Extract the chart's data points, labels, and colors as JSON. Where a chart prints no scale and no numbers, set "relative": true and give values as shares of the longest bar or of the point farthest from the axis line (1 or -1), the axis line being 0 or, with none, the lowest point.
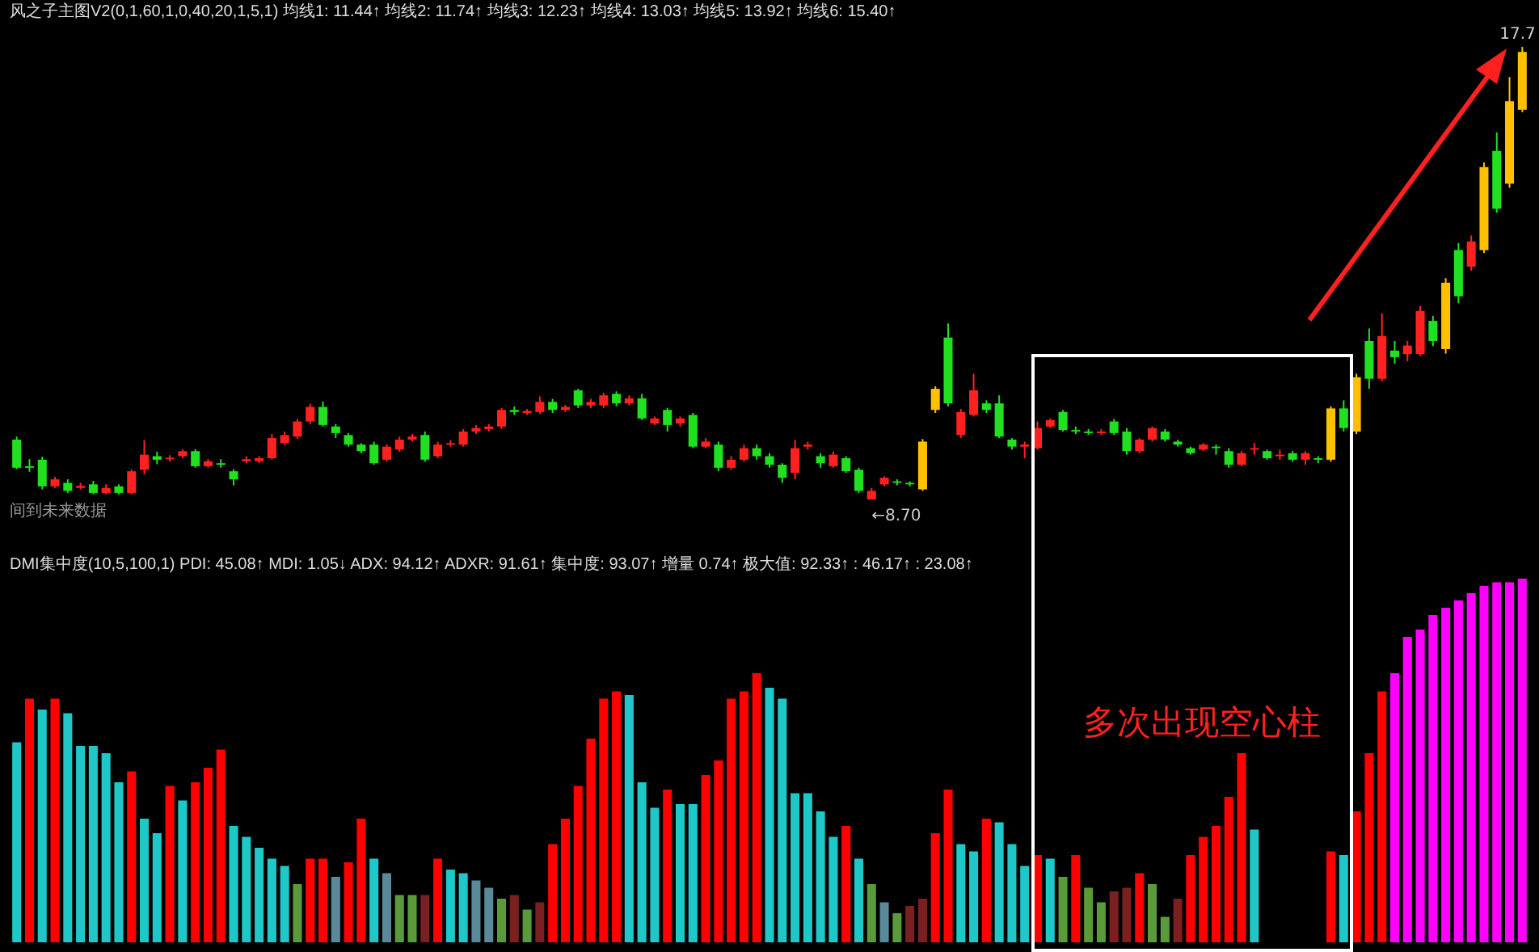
{
  "chart_data": [
    {
      "type": "candlestick",
      "title": "风之子主图V2(0,1,60,1,0,40,20,1,5,1)  均线1: 11.44↑  均线2: 11.74↑  均线3: 12.23↑  均线4: 13.03↑  均线5: 13.92↑  均线6: 15.40↑",
      "tick_labels": false,
      "categories": [
        null,
        null,
        null,
        null,
        null,
        null,
        null,
        null,
        null,
        null,
        null,
        null,
        null,
        null,
        null,
        null,
        null,
        null,
        null,
        null,
        null,
        null,
        null,
        null,
        null,
        null,
        null,
        null,
        null,
        null,
        null,
        null,
        null,
        null,
        null,
        null,
        null,
        null,
        null,
        null,
        null,
        null,
        null,
        null,
        null,
        null,
        null,
        null,
        null,
        null,
        null,
        null,
        null,
        null,
        null,
        null,
        null,
        null,
        null,
        null,
        null,
        null,
        null,
        null,
        null,
        null,
        null,
        null,
        null,
        null,
        null,
        null,
        null,
        null,
        null,
        null,
        null,
        null,
        null,
        null,
        null,
        null,
        null,
        null,
        null,
        null,
        null,
        null,
        null,
        null,
        null,
        null,
        null,
        null,
        null,
        null,
        null,
        null,
        null,
        null,
        null,
        null,
        null,
        null,
        null,
        null,
        null,
        null,
        null,
        null,
        null,
        null,
        null,
        null,
        null,
        null,
        null,
        null,
        null
      ],
      "ohlc": [
        [
          9.89,
          9.95,
          9.3,
          9.33
        ],
        [
          9.36,
          9.5,
          9.25,
          9.33
        ],
        [
          9.49,
          9.55,
          8.9,
          8.96
        ],
        [
          8.96,
          9.15,
          8.93,
          9.1
        ],
        [
          9.03,
          9.1,
          8.83,
          8.87
        ],
        [
          8.93,
          9.03,
          8.9,
          8.97
        ],
        [
          9.0,
          9.07,
          8.8,
          8.83
        ],
        [
          8.83,
          9.0,
          8.8,
          8.93
        ],
        [
          8.96,
          9.0,
          8.8,
          8.83
        ],
        [
          8.83,
          9.3,
          8.8,
          9.26
        ],
        [
          9.29,
          9.88,
          9.2,
          9.59
        ],
        [
          9.56,
          9.65,
          9.4,
          9.49
        ],
        [
          9.5,
          9.58,
          9.45,
          9.53
        ],
        [
          9.56,
          9.7,
          9.52,
          9.66
        ],
        [
          9.66,
          9.7,
          9.33,
          9.36
        ],
        [
          9.36,
          9.5,
          9.33,
          9.46
        ],
        [
          9.42,
          9.5,
          9.33,
          9.39
        ],
        [
          9.26,
          9.3,
          8.98,
          9.1
        ],
        [
          9.46,
          9.56,
          9.42,
          9.5
        ],
        [
          9.46,
          9.56,
          9.42,
          9.52
        ],
        [
          9.52,
          10.0,
          9.49,
          9.92
        ],
        [
          9.82,
          10.05,
          9.78,
          9.98
        ],
        [
          9.95,
          10.3,
          9.9,
          10.25
        ],
        [
          10.25,
          10.6,
          10.2,
          10.54
        ],
        [
          10.54,
          10.65,
          10.15,
          10.18
        ],
        [
          10.15,
          10.2,
          9.92,
          10.02
        ],
        [
          9.98,
          10.02,
          9.75,
          9.79
        ],
        [
          9.79,
          9.82,
          9.62,
          9.66
        ],
        [
          9.79,
          9.85,
          9.39,
          9.42
        ],
        [
          9.49,
          9.8,
          9.45,
          9.75
        ],
        [
          9.69,
          9.95,
          9.65,
          9.89
        ],
        [
          9.89,
          10.0,
          9.85,
          9.95
        ],
        [
          9.98,
          10.05,
          9.45,
          9.49
        ],
        [
          9.56,
          9.85,
          9.52,
          9.79
        ],
        [
          9.79,
          9.88,
          9.75,
          9.82
        ],
        [
          9.79,
          10.1,
          9.75,
          10.05
        ],
        [
          10.05,
          10.18,
          10.0,
          10.12
        ],
        [
          10.1,
          10.2,
          10.05,
          10.15
        ],
        [
          10.15,
          10.52,
          10.1,
          10.48
        ],
        [
          10.48,
          10.55,
          10.38,
          10.44
        ],
        [
          10.42,
          10.5,
          10.38,
          10.46
        ],
        [
          10.44,
          10.75,
          10.4,
          10.64
        ],
        [
          10.64,
          10.7,
          10.42,
          10.48
        ],
        [
          10.48,
          10.58,
          10.44,
          10.54
        ],
        [
          10.87,
          10.9,
          10.52,
          10.57
        ],
        [
          10.57,
          10.7,
          10.52,
          10.64
        ],
        [
          10.57,
          10.82,
          10.52,
          10.77
        ],
        [
          10.8,
          10.85,
          10.55,
          10.61
        ],
        [
          10.61,
          10.77,
          10.57,
          10.71
        ],
        [
          10.71,
          10.8,
          10.28,
          10.31
        ],
        [
          10.21,
          10.35,
          10.18,
          10.31
        ],
        [
          10.48,
          10.52,
          10.05,
          10.18
        ],
        [
          10.21,
          10.35,
          10.15,
          10.31
        ],
        [
          10.38,
          10.42,
          9.72,
          9.75
        ],
        [
          9.75,
          9.92,
          9.72,
          9.85
        ],
        [
          9.79,
          9.85,
          9.26,
          9.33
        ],
        [
          9.33,
          9.56,
          9.29,
          9.49
        ],
        [
          9.49,
          9.79,
          9.45,
          9.72
        ],
        [
          9.72,
          9.79,
          9.49,
          9.56
        ],
        [
          9.56,
          9.62,
          9.33,
          9.39
        ],
        [
          9.39,
          9.42,
          9.03,
          9.13
        ],
        [
          9.23,
          9.88,
          9.1,
          9.72
        ],
        [
          9.75,
          9.85,
          9.69,
          9.79
        ],
        [
          9.56,
          9.62,
          9.33,
          9.42
        ],
        [
          9.36,
          9.65,
          9.33,
          9.59
        ],
        [
          9.52,
          9.56,
          9.23,
          9.26
        ],
        [
          9.29,
          9.33,
          8.83,
          8.87
        ],
        [
          8.7,
          8.93,
          8.7,
          8.87
        ],
        [
          9.0,
          9.16,
          8.96,
          9.13
        ],
        [
          9.06,
          9.1,
          8.98,
          9.03
        ],
        [
          9.03,
          9.06,
          8.96,
          9.0
        ],
        [
          8.9,
          9.9,
          8.87,
          9.85
        ],
        [
          10.48,
          10.95,
          10.42,
          10.9
        ],
        [
          11.92,
          12.2,
          10.55,
          10.61
        ],
        [
          9.98,
          10.5,
          9.92,
          10.44
        ],
        [
          10.38,
          11.2,
          10.35,
          10.87
        ],
        [
          10.61,
          10.67,
          10.42,
          10.48
        ],
        [
          10.61,
          10.77,
          9.92,
          9.95
        ],
        [
          9.89,
          9.92,
          9.69,
          9.75
        ],
        [
          9.75,
          9.85,
          9.52,
          9.79
        ],
        [
          9.72,
          10.25,
          9.69,
          10.12
        ],
        [
          10.15,
          10.31,
          10.12,
          10.28
        ],
        [
          10.44,
          10.48,
          10.05,
          10.08
        ],
        [
          10.08,
          10.15,
          10.0,
          10.05
        ],
        [
          10.05,
          10.1,
          9.98,
          10.02
        ],
        [
          10.02,
          10.1,
          9.98,
          10.05
        ],
        [
          10.25,
          10.3,
          9.98,
          10.02
        ],
        [
          10.05,
          10.12,
          9.59,
          9.66
        ],
        [
          9.66,
          9.92,
          9.62,
          9.89
        ],
        [
          9.89,
          10.15,
          9.85,
          10.12
        ],
        [
          10.05,
          10.1,
          9.85,
          9.89
        ],
        [
          9.85,
          9.89,
          9.75,
          9.79
        ],
        [
          9.72,
          9.75,
          9.59,
          9.62
        ],
        [
          9.69,
          9.82,
          9.66,
          9.79
        ],
        [
          9.75,
          9.79,
          9.59,
          9.72
        ],
        [
          9.66,
          9.72,
          9.33,
          9.39
        ],
        [
          9.39,
          9.66,
          9.36,
          9.62
        ],
        [
          9.69,
          9.82,
          9.59,
          9.72
        ],
        [
          9.66,
          9.69,
          9.49,
          9.52
        ],
        [
          9.56,
          9.69,
          9.49,
          9.59
        ],
        [
          9.62,
          9.66,
          9.45,
          9.49
        ],
        [
          9.49,
          9.66,
          9.39,
          9.62
        ],
        [
          9.52,
          9.56,
          9.42,
          9.49
        ],
        [
          9.49,
          10.55,
          9.45,
          10.51
        ],
        [
          10.51,
          10.67,
          10.05,
          10.12
        ],
        [
          10.05,
          11.2,
          10.0,
          11.13
        ],
        [
          11.85,
          12.1,
          10.9,
          11.1
        ],
        [
          11.1,
          12.4,
          11.05,
          11.95
        ],
        [
          11.66,
          11.85,
          11.4,
          11.53
        ],
        [
          11.59,
          11.85,
          11.45,
          11.76
        ],
        [
          11.59,
          12.55,
          11.55,
          12.45
        ],
        [
          12.25,
          12.35,
          11.75,
          11.85
        ],
        [
          11.69,
          13.1,
          11.6,
          13.01
        ],
        [
          13.66,
          13.8,
          12.6,
          12.74
        ],
        [
          13.33,
          13.95,
          13.25,
          13.83
        ],
        [
          13.66,
          15.4,
          13.6,
          15.31
        ],
        [
          15.63,
          16.0,
          14.4,
          14.48
        ],
        [
          14.98,
          17.1,
          14.9,
          16.62
        ],
        [
          16.45,
          17.7,
          16.4,
          17.6
        ]
      ],
      "colors": [
        "#20e020",
        "#20e020",
        "#20e020",
        "#ff2020",
        "#20e020",
        "#ff2020",
        "#20e020",
        "#ff2020",
        "#20e020",
        "#ff2020",
        "#ff2020",
        "#20e020",
        "#ff2020",
        "#ff2020",
        "#20e020",
        "#ff2020",
        "#20e020",
        "#20e020",
        "#ff2020",
        "#ff2020",
        "#ff2020",
        "#ff2020",
        "#ff2020",
        "#ff2020",
        "#20e020",
        "#20e020",
        "#20e020",
        "#20e020",
        "#20e020",
        "#ff2020",
        "#ff2020",
        "#ff2020",
        "#20e020",
        "#ff2020",
        "#ff2020",
        "#ff2020",
        "#ff2020",
        "#ff2020",
        "#ff2020",
        "#20e020",
        "#ff2020",
        "#ff2020",
        "#20e020",
        "#ff2020",
        "#20e020",
        "#ff2020",
        "#ff2020",
        "#20e020",
        "#ff2020",
        "#20e020",
        "#ff2020",
        "#20e020",
        "#ff2020",
        "#20e020",
        "#ff2020",
        "#20e020",
        "#ff2020",
        "#ff2020",
        "#20e020",
        "#20e020",
        "#20e020",
        "#ff2020",
        "#ff2020",
        "#20e020",
        "#ff2020",
        "#20e020",
        "#20e020",
        "#ff2020",
        "#ff2020",
        "#20e020",
        "#20e020",
        "#ffc000",
        "#ffc000",
        "#20e020",
        "#ff2020",
        "#ff2020",
        "#20e020",
        "#20e020",
        "#20e020",
        "#ff2020",
        "#ff2020",
        "#ff2020",
        "#20e020",
        "#20e020",
        "#20e020",
        "#ff2020",
        "#20e020",
        "#20e020",
        "#ff2020",
        "#ff2020",
        "#20e020",
        "#20e020",
        "#20e020",
        "#ff2020",
        "#20e020",
        "#20e020",
        "#ff2020",
        "#ff2020",
        "#20e020",
        "#ff2020",
        "#20e020",
        "#ff2020",
        "#20e020",
        "#ffc000",
        "#20e020",
        "#ffc000",
        "#20e020",
        "#ff2020",
        "#20e020",
        "#ff2020",
        "#ff2020",
        "#20e020",
        "#ffc000",
        "#20e020",
        "#ff2020",
        "#ffc000",
        "#20e020",
        "#ffc000",
        "#ffc000"
      ],
      "annotations": [
        "←8.70",
        {
          "text": "17.7",
          "y": 17.7
        },
        "间到未来数据"
      ]
    },
    {
      "type": "bar",
      "title": "DMI集中度(10,5,100,1)  PDI: 45.08↑  MDI: 1.05↓  ADX: 94.12↑  ADXR: 91.61↑  集中度: 93.07↑  增量 0.74↑  极大值: 92.33↑  : 46.17↑  : 23.08↑",
      "relative": true,
      "tick_labels": false,
      "categories": [
        null,
        null,
        null,
        null,
        null,
        null,
        null,
        null,
        null,
        null,
        null,
        null,
        null,
        null,
        null,
        null,
        null,
        null,
        null,
        null,
        null,
        null,
        null,
        null,
        null,
        null,
        null,
        null,
        null,
        null,
        null,
        null,
        null,
        null,
        null,
        null,
        null,
        null,
        null,
        null,
        null,
        null,
        null,
        null,
        null,
        null,
        null,
        null,
        null,
        null,
        null,
        null,
        null,
        null,
        null,
        null,
        null,
        null,
        null,
        null,
        null,
        null,
        null,
        null,
        null,
        null,
        null,
        null,
        null,
        null,
        null,
        null,
        null,
        null,
        null,
        null,
        null,
        null,
        null,
        null,
        null,
        null,
        null,
        null,
        null,
        null,
        null,
        null,
        null,
        null,
        null,
        null,
        null,
        null,
        null,
        null,
        null,
        null,
        null,
        null,
        null,
        null,
        null,
        null,
        null,
        null,
        null,
        null,
        null,
        null,
        null,
        null,
        null,
        null,
        null,
        null,
        null,
        null,
        null
      ],
      "values": [
        0.55,
        0.67,
        0.64,
        0.67,
        0.63,
        0.54,
        0.54,
        0.52,
        0.44,
        0.47,
        0.34,
        0.3,
        0.43,
        0.39,
        0.44,
        0.48,
        0.53,
        0.32,
        0.29,
        0.26,
        0.23,
        0.21,
        0.16,
        0.23,
        0.23,
        0.18,
        0.22,
        0.34,
        0.23,
        0.19,
        0.13,
        0.13,
        0.13,
        0.23,
        0.2,
        0.19,
        0.17,
        0.15,
        0.12,
        0.13,
        0.09,
        0.11,
        0.27,
        0.34,
        0.43,
        0.56,
        0.67,
        0.69,
        0.68,
        0.44,
        0.37,
        0.42,
        0.38,
        0.38,
        0.46,
        0.5,
        0.67,
        0.69,
        0.74,
        0.7,
        0.67,
        0.41,
        0.41,
        0.36,
        0.29,
        0.32,
        0.23,
        0.16,
        0.11,
        0.08,
        0.1,
        0.12,
        0.3,
        0.42,
        0.27,
        0.25,
        0.34,
        0.33,
        0.27,
        0.21,
        0.24,
        0.23,
        0.18,
        0.24,
        0.15,
        0.11,
        0.14,
        0.15,
        0.19,
        0.16,
        0.07,
        0.12,
        0.24,
        0.29,
        0.32,
        0.4,
        0.52,
        0.31,
        null,
        null,
        null,
        null,
        null,
        0.25,
        0.24,
        0.36,
        0.52,
        0.69,
        0.74,
        0.84,
        0.86,
        0.9,
        0.92,
        0.94,
        0.96,
        0.98,
        0.99,
        0.99,
        1
      ],
      "colors": [
        "#1ec8c8",
        "#ff0000",
        "#1ec8c8",
        "#ff0000",
        "#1ec8c8",
        "#1ec8c8",
        "#1ec8c8",
        "#1ec8c8",
        "#1ec8c8",
        "#ff0000",
        "#1ec8c8",
        "#1ec8c8",
        "#ff0000",
        "#1ec8c8",
        "#ff0000",
        "#ff0000",
        "#ff0000",
        "#1ec8c8",
        "#1ec8c8",
        "#1ec8c8",
        "#1ec8c8",
        "#1ec8c8",
        "#5a9a3a",
        "#ff0000",
        "#ff0000",
        "#5a8a9a",
        "#ff0000",
        "#ff0000",
        "#1ec8c8",
        "#5a8a9a",
        "#5a9a3a",
        "#5a9a3a",
        "#7a2020",
        "#ff0000",
        "#1ec8c8",
        "#1ec8c8",
        "#5a8a9a",
        "#5a8a9a",
        "#5a9a3a",
        "#7a2020",
        "#5a9a3a",
        "#7a2020",
        "#ff0000",
        "#ff0000",
        "#ff0000",
        "#ff0000",
        "#ff0000",
        "#ff0000",
        "#1ec8c8",
        "#1ec8c8",
        "#1ec8c8",
        "#ff0000",
        "#1ec8c8",
        "#1ec8c8",
        "#ff0000",
        "#ff0000",
        "#ff0000",
        "#ff0000",
        "#ff0000",
        "#1ec8c8",
        "#1ec8c8",
        "#1ec8c8",
        "#1ec8c8",
        "#1ec8c8",
        "#1ec8c8",
        "#ff0000",
        "#1ec8c8",
        "#5a9a3a",
        "#5a8a9a",
        "#5a9a3a",
        "#7a2020",
        "#7a2020",
        "#ff0000",
        "#ff0000",
        "#1ec8c8",
        "#1ec8c8",
        "#ff0000",
        "#1ec8c8",
        "#1ec8c8",
        "#1ec8c8",
        "#ff0000",
        "#1ec8c8",
        "#5a9a3a",
        "#ff0000",
        "#5a9a3a",
        "#5a9a3a",
        "#7a2020",
        "#7a2020",
        "#ff0000",
        "#5a9a3a",
        "#5a9a3a",
        "#7a2020",
        "#ff0000",
        "#ff0000",
        "#ff0000",
        "#ff0000",
        "#ff0000",
        "#1ec8c8",
        null,
        null,
        null,
        null,
        null,
        "#ff0000",
        "#1ec8c8",
        "#ff0000",
        "#ff0000",
        "#ff0000",
        "#ff00ff",
        "#ff00ff",
        "#ff00ff",
        "#ff00ff",
        "#ff00ff",
        "#ff00ff",
        "#ff00ff",
        "#ff00ff",
        "#ff00ff",
        "#ff00ff",
        "#ff00ff"
      ],
      "annotations": [
        "多次出现空心柱"
      ]
    }
  ]
}
